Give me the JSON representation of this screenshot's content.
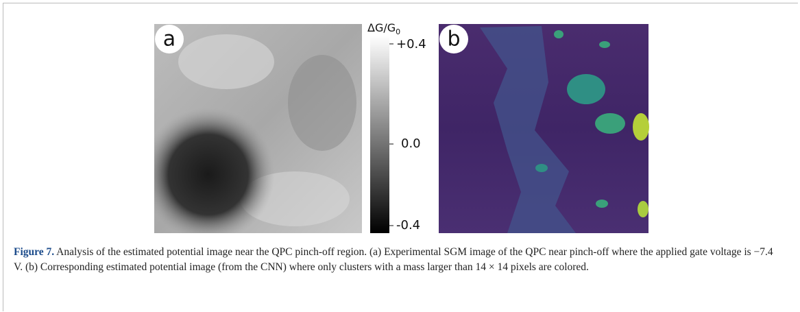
{
  "figure": {
    "panels": [
      {
        "label": "a"
      },
      {
        "label": "b"
      }
    ],
    "colorbar": {
      "title": "ΔG/G",
      "title_subscript": "0",
      "ticks": [
        "+0.4",
        "0.0",
        "-0.4"
      ]
    },
    "caption": {
      "label": "Figure 7.",
      "text": "Analysis of the estimated potential image near the QPC pinch-off region. (a) Experimental SGM image of the QPC near pinch-off where the applied gate voltage is −7.4 V. (b) Corresponding estimated potential image (from the CNN) where only clusters with a mass larger than 14 × 14 pixels are colored."
    }
  }
}
